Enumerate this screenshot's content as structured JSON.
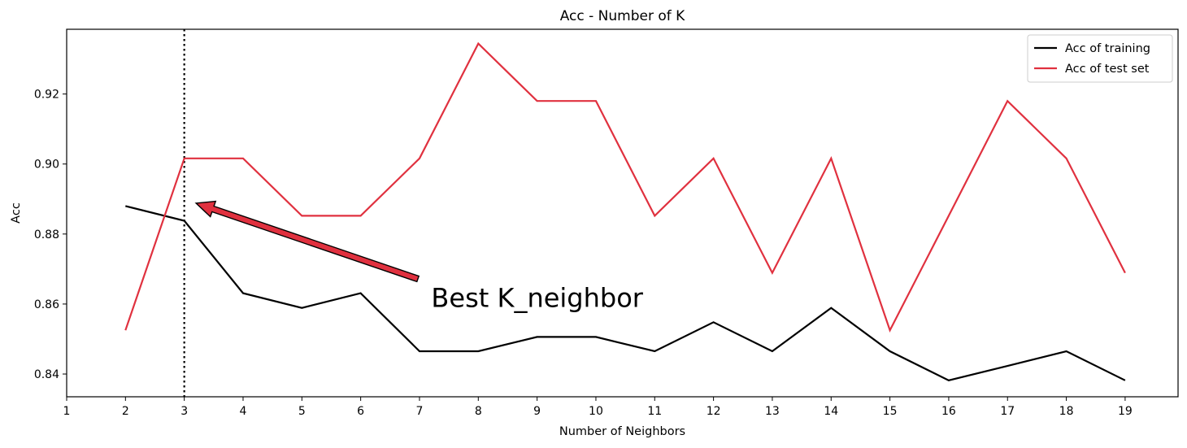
{
  "chart_data": {
    "type": "line",
    "title": "Acc - Number of K",
    "xlabel": "Number of Neighbors",
    "ylabel": "Acc",
    "xlim": [
      1,
      19.9
    ],
    "ylim": [
      0.8335,
      0.9385
    ],
    "xticks": [
      1,
      2,
      3,
      4,
      5,
      6,
      7,
      8,
      9,
      10,
      11,
      12,
      13,
      14,
      15,
      16,
      17,
      18,
      19
    ],
    "yticks": [
      0.84,
      0.86,
      0.88,
      0.9,
      0.92
    ],
    "ytick_labels": [
      "0.84",
      "0.86",
      "0.88",
      "0.90",
      "0.92"
    ],
    "x": [
      2,
      3,
      4,
      5,
      6,
      7,
      8,
      9,
      10,
      11,
      12,
      13,
      14,
      15,
      16,
      17,
      18,
      19
    ],
    "series": [
      {
        "name": "Acc of training",
        "color": "#000000",
        "values": [
          0.888,
          0.8838,
          0.8631,
          0.8589,
          0.8631,
          0.8465,
          0.8465,
          0.8506,
          0.8506,
          0.8465,
          0.8548,
          0.8465,
          0.8589,
          0.8465,
          0.8382,
          0.8423,
          0.8465,
          0.8382
        ]
      },
      {
        "name": "Acc of test set",
        "color": "#e0313f",
        "values": [
          0.8525,
          0.9016,
          0.9016,
          0.8852,
          0.8852,
          0.9016,
          0.9344,
          0.918,
          0.918,
          0.8852,
          0.9016,
          0.8689,
          0.9016,
          0.8525,
          0.8852,
          0.918,
          0.9016,
          0.8689
        ]
      }
    ],
    "vline": {
      "x": 3,
      "style": "dotted",
      "color": "#000000"
    },
    "annotation": {
      "text": "Best K_neighbor",
      "text_x": 7.2,
      "text_y": 0.8592,
      "arrow_to_x": 3.2,
      "arrow_to_y": 0.8888,
      "arrow_color": "#e0313f"
    },
    "legend_placement": "upper-right",
    "grid": false
  }
}
